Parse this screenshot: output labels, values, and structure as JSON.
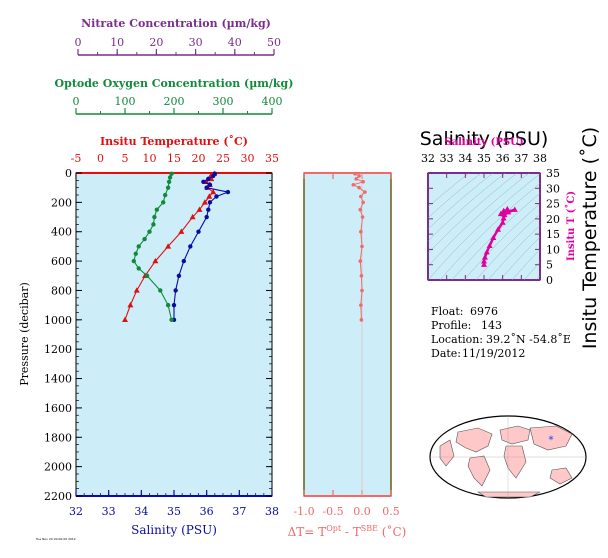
{
  "chart_data": [
    {
      "type": "line",
      "name": "profile",
      "x_axes": {
        "nitrate": {
          "label": "Nitrate Concentration (µm/kg)",
          "lim": [
            0,
            50
          ],
          "ticks": [
            0,
            10,
            20,
            30,
            40,
            50
          ],
          "color": "#7a2d8c"
        },
        "oxygen": {
          "label": "Optode Oxygen Concentration (µm/kg)",
          "lim": [
            0,
            400
          ],
          "ticks": [
            0,
            100,
            200,
            300,
            400
          ],
          "color": "#118a3a"
        },
        "temperature": {
          "label": "Insitu Temperature (˚C)",
          "lim": [
            -5,
            35
          ],
          "ticks": [
            -5,
            0,
            5,
            10,
            15,
            20,
            25,
            30,
            35
          ],
          "color": "#e01010"
        },
        "salinity": {
          "label": "Salinity (PSU)",
          "lim": [
            32,
            38
          ],
          "ticks": [
            32,
            33,
            34,
            35,
            36,
            37,
            38
          ],
          "color": "#0a0aa8"
        }
      },
      "ylabel": "Pressure (decibar)",
      "ylim": [
        2200,
        0
      ],
      "yticks": [
        0,
        200,
        400,
        600,
        800,
        1000,
        1200,
        1400,
        1600,
        1800,
        2000,
        2200
      ],
      "series": [
        {
          "key": "temperature",
          "color": "#e01010",
          "marker": "triangle",
          "pressure": [
            5,
            20,
            40,
            60,
            80,
            100,
            130,
            160,
            200,
            250,
            300,
            400,
            500,
            600,
            700,
            800,
            900,
            1000
          ],
          "values": [
            23.2,
            22.5,
            22.6,
            21.6,
            22.3,
            21.8,
            23.0,
            22.2,
            21.3,
            20.2,
            18.8,
            16.5,
            13.8,
            11.2,
            9.1,
            7.4,
            6.1,
            5.0
          ]
        },
        {
          "key": "salinity",
          "color": "#0a0aa8",
          "marker": "dot",
          "pressure": [
            5,
            20,
            40,
            60,
            80,
            100,
            130,
            160,
            200,
            250,
            300,
            400,
            500,
            600,
            700,
            800,
            900,
            1000
          ],
          "values": [
            36.25,
            36.2,
            36.05,
            35.9,
            36.1,
            36.0,
            36.65,
            36.3,
            36.1,
            36.05,
            36.0,
            35.75,
            35.5,
            35.3,
            35.15,
            35.05,
            35.0,
            35.0
          ]
        },
        {
          "key": "oxygen",
          "color": "#118a3a",
          "marker": "dot",
          "pressure": [
            5,
            30,
            60,
            100,
            150,
            200,
            250,
            300,
            350,
            400,
            450,
            500,
            550,
            600,
            650,
            700,
            800,
            900,
            1000
          ],
          "values": [
            195,
            192,
            190,
            188,
            182,
            178,
            165,
            160,
            158,
            150,
            140,
            128,
            122,
            118,
            128,
            145,
            172,
            188,
            195
          ]
        }
      ]
    },
    {
      "type": "line",
      "name": "temperature-difference",
      "xlabel": "ΔT= T",
      "xlabel_sup1": "Opt",
      "xlabel_mid": " - T",
      "xlabel_sup2": "SBE",
      "xlabel_unit": " (˚C)",
      "xlim": [
        -1.0,
        0.5
      ],
      "xticks": [
        "-1.0",
        "-0.5",
        "0.0",
        "0.5"
      ],
      "ylim": [
        2200,
        0
      ],
      "color": "#f06a6a",
      "pressure": [
        5,
        20,
        40,
        60,
        80,
        100,
        130,
        160,
        200,
        250,
        300,
        400,
        500,
        600,
        700,
        800,
        900,
        1000
      ],
      "values": [
        -0.12,
        -0.05,
        -0.1,
        0.02,
        -0.15,
        -0.05,
        0.05,
        -0.02,
        0.02,
        -0.03,
        0.01,
        -0.02,
        0.0,
        -0.03,
        -0.01,
        0.0,
        -0.02,
        -0.01
      ]
    },
    {
      "type": "scatter",
      "name": "ts-diagram",
      "title": "Salinity (PSU)",
      "title_small": "Salinity (PSU)",
      "ylabel": "Insitu Temperature (˚C)",
      "ylabel_small": "Insitu T (˚C)",
      "xlim": [
        32,
        38
      ],
      "xticks": [
        32,
        33,
        34,
        35,
        36,
        37,
        38
      ],
      "ylim": [
        0,
        35
      ],
      "yticks": [
        0,
        5,
        10,
        15,
        20,
        25,
        30,
        35
      ],
      "color": "#e000a0",
      "salinity": [
        35.0,
        35.0,
        35.05,
        35.15,
        35.3,
        35.5,
        35.75,
        36.0,
        36.05,
        36.1,
        36.3,
        36.65,
        36.0,
        36.1,
        35.9,
        36.05,
        36.2,
        36.25
      ],
      "temperature": [
        5.0,
        6.1,
        7.4,
        9.1,
        11.2,
        13.8,
        16.5,
        18.8,
        20.2,
        21.3,
        22.2,
        23.0,
        21.8,
        22.3,
        21.6,
        22.6,
        22.5,
        23.2
      ]
    }
  ],
  "info": {
    "float_label": "Float:",
    "float_value": "6976",
    "profile_label": "Profile:",
    "profile_value": "143",
    "location_label": "Location:",
    "location_value": "39.2˚N  -54.8˚E",
    "date_label": "Date:",
    "date_value": "11/19/2012"
  },
  "map": {
    "marker_color": "#1a3cff",
    "land_color": "#ffc8c8",
    "ocean_color": "#ffffff"
  },
  "footer_text": "Tue Nov 20 00:00:00 2012"
}
